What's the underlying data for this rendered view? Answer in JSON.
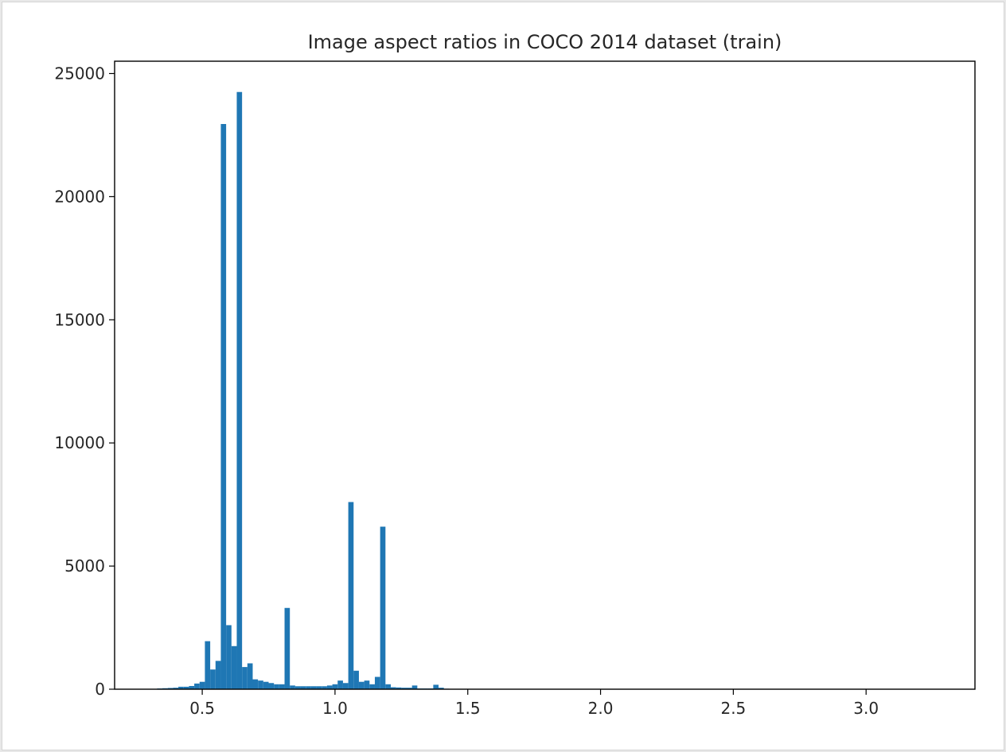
{
  "chart_data": {
    "type": "bar",
    "title": "Image aspect ratios in COCO 2014 dataset (train)",
    "xlabel": "",
    "ylabel": "",
    "xlim": [
      0.17,
      3.41
    ],
    "ylim": [
      0,
      25500
    ],
    "xticks": [
      0.5,
      1.0,
      1.5,
      2.0,
      2.5,
      3.0
    ],
    "xtick_labels": [
      "0.5",
      "1.0",
      "1.5",
      "2.0",
      "2.5",
      "3.0"
    ],
    "yticks": [
      0,
      5000,
      10000,
      15000,
      20000,
      25000
    ],
    "ytick_labels": [
      "0",
      "5000",
      "10000",
      "15000",
      "20000",
      "25000"
    ],
    "grid": false,
    "bar_color": "#1f77b4",
    "bins": {
      "start": 0.33,
      "width": 0.02,
      "counts": [
        30,
        40,
        50,
        60,
        100,
        100,
        130,
        230,
        300,
        1950,
        800,
        1150,
        22950,
        2600,
        1750,
        24250,
        900,
        1050,
        400,
        350,
        300,
        250,
        200,
        200,
        3300,
        150,
        120,
        120,
        120,
        120,
        120,
        120,
        150,
        200,
        350,
        250,
        7600,
        750,
        300,
        350,
        200,
        500,
        6600,
        200,
        80,
        70,
        60,
        60,
        150,
        30,
        30,
        30,
        180,
        60,
        20,
        15,
        15,
        10,
        10,
        10,
        10,
        8,
        8,
        8,
        5,
        5,
        5,
        5,
        5,
        3,
        3,
        3,
        3,
        3,
        3,
        2,
        2,
        2,
        2,
        2,
        2,
        2,
        2,
        2,
        1,
        1,
        1,
        1,
        1,
        1,
        1,
        1,
        1,
        1,
        1,
        1,
        1,
        1,
        1,
        1,
        1,
        1,
        1,
        1,
        1,
        1,
        1,
        1,
        1,
        1,
        1,
        1,
        1,
        1,
        1,
        1,
        1,
        1,
        1,
        1,
        1,
        1,
        1,
        1,
        1,
        1,
        1,
        1,
        1,
        1,
        1,
        1,
        1,
        1,
        1,
        1,
        1,
        1,
        1,
        1,
        1,
        1,
        1,
        1,
        1,
        1,
        1,
        1,
        1,
        1,
        1
      ]
    }
  }
}
